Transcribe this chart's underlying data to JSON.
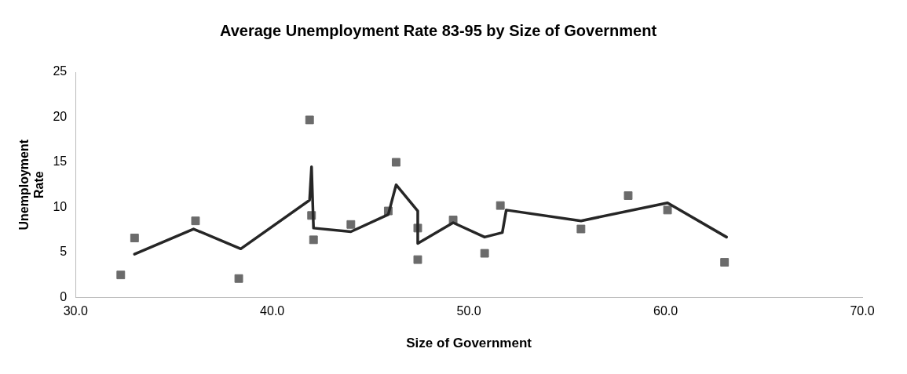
{
  "chart_data": {
    "type": "scatter",
    "title": "Average Unemployment Rate 83-95 by Size of Government",
    "xlabel": "Size of Government",
    "ylabel": "Unemployment Rate",
    "xlim": [
      30,
      70
    ],
    "xticks": [
      {
        "value": 30,
        "label": "30.0"
      },
      {
        "value": 40,
        "label": "40.0"
      },
      {
        "value": 50,
        "label": "50.0"
      },
      {
        "value": 60,
        "label": "60.0"
      },
      {
        "value": 70,
        "label": "70.0"
      }
    ],
    "ylim": [
      0,
      25
    ],
    "yticks": [
      0,
      5,
      10,
      15,
      20,
      25
    ],
    "grid": false,
    "legend": false,
    "series": [
      {
        "color": "#6b6b6b",
        "marker": "square",
        "x": [
          32.3,
          33.0,
          36.1,
          38.3,
          41.9,
          42.0,
          42.1,
          44.0,
          45.9,
          46.3,
          47.4,
          47.4,
          49.2,
          50.8,
          51.6,
          55.7,
          58.1,
          60.1,
          63.0
        ],
        "values": [
          2.5,
          6.6,
          8.5,
          2.1,
          19.7,
          9.1,
          6.4,
          8.1,
          9.6,
          15.0,
          7.7,
          4.2,
          8.6,
          4.9,
          10.2,
          7.6,
          11.3,
          9.7,
          3.9
        ]
      },
      {
        "type": "line",
        "color": "#262626",
        "marker": "none",
        "line_style": "solid",
        "x": [
          33.0,
          36.0,
          38.4,
          41.9,
          42.0,
          42.1,
          44.0,
          45.9,
          46.3,
          47.4,
          47.4,
          49.2,
          50.8,
          51.7,
          51.9,
          55.7,
          60.1,
          63.1
        ],
        "values": [
          4.8,
          7.6,
          5.4,
          10.8,
          14.5,
          7.7,
          7.3,
          9.2,
          12.5,
          9.6,
          6.0,
          8.3,
          6.7,
          7.2,
          9.7,
          8.5,
          10.5,
          6.7
        ]
      }
    ]
  }
}
